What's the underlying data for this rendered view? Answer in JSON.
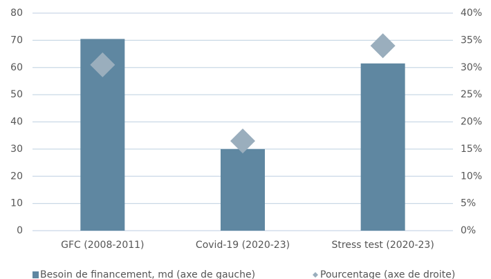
{
  "chart_data": {
    "type": "bar",
    "categories": [
      "GFC (2008-2011)",
      "Covid-19 (2020-23)",
      "Stress test (2020-23)"
    ],
    "series": [
      {
        "name": "Besoin de financement, md (axe de gauche)",
        "color": "#5f87a1",
        "values": [
          70.5,
          30,
          61.5
        ]
      },
      {
        "name": "Pourcentage (axe de droite)",
        "color": "#9aaebd",
        "values": [
          30.5,
          16.5,
          34
        ],
        "axis": "y2",
        "marker": "diamond"
      }
    ],
    "ylim": [
      0,
      80
    ],
    "yticks": [
      0,
      10,
      20,
      30,
      40,
      50,
      60,
      70,
      80
    ],
    "y2lim": [
      0,
      40
    ],
    "y2ticks": [
      {
        "value": 0,
        "label": "0%"
      },
      {
        "value": 5,
        "label": "5%"
      },
      {
        "value": 10,
        "label": "10%"
      },
      {
        "value": 15,
        "label": "15%"
      },
      {
        "value": 20,
        "label": "20%"
      },
      {
        "value": 25,
        "label": "25%"
      },
      {
        "value": 30,
        "label": "30%"
      },
      {
        "value": 35,
        "label": "35%"
      },
      {
        "value": 40,
        "label": "40%"
      }
    ],
    "grid": true,
    "legend": "bottom"
  }
}
